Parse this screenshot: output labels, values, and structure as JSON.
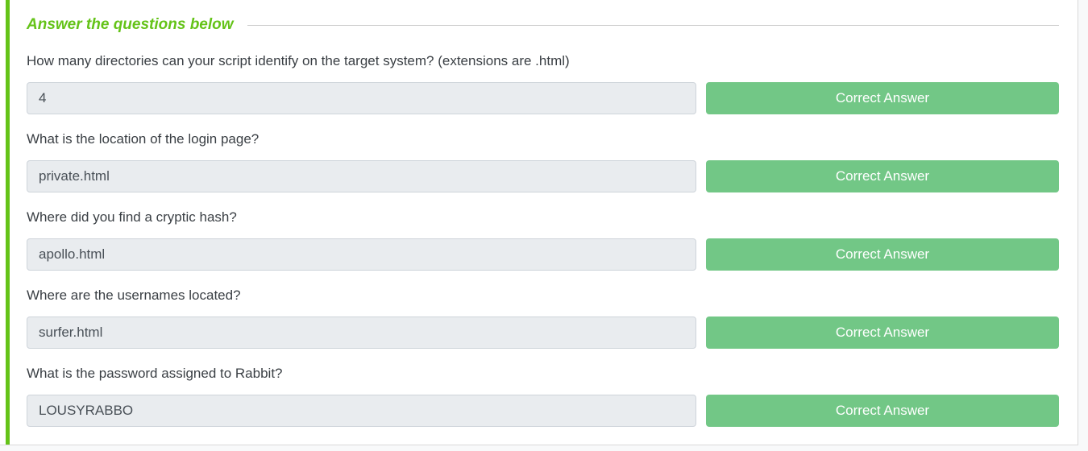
{
  "header": {
    "title": "Answer the questions below"
  },
  "questions": [
    {
      "label": "How many directories can your script identify on the target system? (extensions are .html)",
      "answer": "4",
      "button_label": "Correct Answer"
    },
    {
      "label": "What is the location of the login page?",
      "answer": "private.html",
      "button_label": "Correct Answer"
    },
    {
      "label": "Where did you find a cryptic hash?",
      "answer": "apollo.html",
      "button_label": "Correct Answer"
    },
    {
      "label": "Where are the usernames located?",
      "answer": "surfer.html",
      "button_label": "Correct Answer"
    },
    {
      "label": "What is the password assigned to Rabbit?",
      "answer": "LOUSYRABBO",
      "button_label": "Correct Answer"
    }
  ],
  "colors": {
    "accent_green": "#64c318",
    "button_green": "#72c786",
    "input_background": "#e9ecef",
    "input_border": "#ced4da",
    "page_background": "#f8f9fa"
  }
}
